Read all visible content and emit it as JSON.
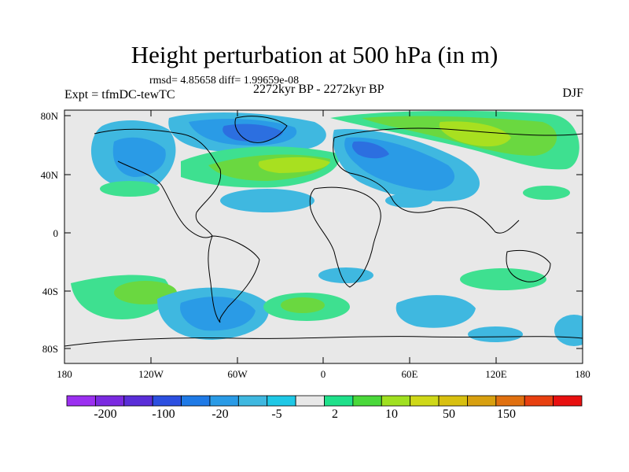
{
  "title": "Height perturbation at 500 hPa (in m)",
  "stats": "rmsd= 4.85658 diff= 1.99659e-08",
  "period": "2272kyr BP - 2272kyr BP",
  "experiment": "Expt = tfmDC-tewTC",
  "season": "DJF",
  "lat_ticks": [
    "80N",
    "40N",
    "0",
    "40S",
    "80S"
  ],
  "lon_ticks": [
    "180",
    "120W",
    "60W",
    "0",
    "60E",
    "120E",
    "180"
  ],
  "colorbar": {
    "colors": [
      "#9b30f0",
      "#7a2ae0",
      "#5a2ed8",
      "#2c4fe0",
      "#1f7ae6",
      "#2a9be6",
      "#3fb8e0",
      "#1fc8e6",
      "#e8e8e8",
      "#1fe08a",
      "#4ad83a",
      "#a0e020",
      "#cfd818",
      "#d8c010",
      "#d8a010",
      "#e07010",
      "#e84010",
      "#e81010"
    ],
    "labels": [
      "-200",
      "-100",
      "-20",
      "-5",
      "2",
      "10",
      "50",
      "150"
    ]
  },
  "field_colors": {
    "neutral": "#e8e8e8",
    "deep_blue": "#2c6fe0",
    "mid_blue": "#2a9be6",
    "light_blue": "#3fb8e0",
    "teal": "#1fd0c8",
    "green_light": "#3ee090",
    "green": "#6ad840",
    "yellow_green": "#a8e020"
  }
}
